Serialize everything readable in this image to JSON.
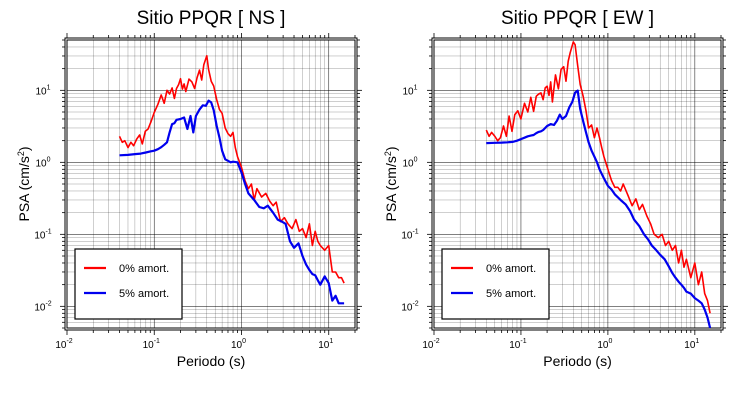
{
  "chart_data": [
    {
      "type": "line",
      "title": "Sitio PPQR [ NS ]",
      "xlabel": "Periodo (s)",
      "ylabel": "PSA (cm/s",
      "ylabel_sup": "2",
      "ylabel_close": ")",
      "xscale": "log",
      "yscale": "log",
      "xlim": [
        0.01,
        20
      ],
      "ylim": [
        0.005,
        50
      ],
      "xticks": [
        {
          "value": 0.01,
          "base": "10",
          "exp": "-2"
        },
        {
          "value": 0.1,
          "base": "10",
          "exp": "-1"
        },
        {
          "value": 1,
          "base": "10",
          "exp": "0"
        },
        {
          "value": 10,
          "base": "10",
          "exp": "1"
        }
      ],
      "yticks": [
        {
          "value": 0.01,
          "base": "10",
          "exp": "-2"
        },
        {
          "value": 0.1,
          "base": "10",
          "exp": "-1"
        },
        {
          "value": 1,
          "base": "10",
          "exp": "0"
        },
        {
          "value": 10,
          "base": "10",
          "exp": "1"
        }
      ],
      "grid": true,
      "legend_position": "bottom-left",
      "series": [
        {
          "name": "0% amort.",
          "color": "#ff0000",
          "x": [
            0.04,
            0.043,
            0.046,
            0.05,
            0.054,
            0.058,
            0.063,
            0.068,
            0.073,
            0.079,
            0.085,
            0.092,
            0.1,
            0.11,
            0.12,
            0.13,
            0.14,
            0.15,
            0.16,
            0.17,
            0.18,
            0.19,
            0.2,
            0.21,
            0.22,
            0.23,
            0.25,
            0.27,
            0.29,
            0.31,
            0.33,
            0.35,
            0.37,
            0.4,
            0.42,
            0.45,
            0.48,
            0.52,
            0.56,
            0.6,
            0.65,
            0.7,
            0.75,
            0.8,
            0.85,
            0.9,
            1.0,
            1.1,
            1.2,
            1.3,
            1.4,
            1.5,
            1.7,
            1.9,
            2.1,
            2.3,
            2.5,
            2.8,
            3.1,
            3.4,
            3.8,
            4.2,
            4.6,
            5.0,
            5.5,
            6.0,
            6.5,
            7.0,
            7.5,
            8.0,
            9.0,
            10.0,
            11.0,
            12.0,
            13.0,
            14.0,
            15.0
          ],
          "y": [
            2.3,
            1.9,
            2.0,
            1.6,
            1.9,
            1.7,
            2.1,
            2.4,
            1.8,
            2.7,
            2.9,
            3.7,
            4.9,
            6.4,
            8.6,
            6.6,
            10.0,
            8.9,
            10.8,
            7.7,
            10.6,
            12.0,
            14.5,
            10.4,
            12.3,
            9.6,
            14.3,
            13.1,
            10.6,
            15.0,
            19.1,
            13.9,
            22.6,
            30.2,
            19.4,
            13.4,
            11.5,
            7.4,
            5.4,
            4.8,
            3.0,
            2.5,
            2.3,
            2.6,
            1.6,
            1.2,
            0.85,
            0.55,
            0.43,
            0.5,
            0.3,
            0.43,
            0.33,
            0.37,
            0.29,
            0.25,
            0.28,
            0.15,
            0.17,
            0.14,
            0.12,
            0.16,
            0.11,
            0.12,
            0.09,
            0.14,
            0.07,
            0.11,
            0.08,
            0.07,
            0.06,
            0.07,
            0.03,
            0.03,
            0.025,
            0.025,
            0.021
          ]
        },
        {
          "name": "5% amort.",
          "color": "#0000ee",
          "x": [
            0.04,
            0.05,
            0.06,
            0.07,
            0.08,
            0.09,
            0.1,
            0.11,
            0.12,
            0.13,
            0.14,
            0.15,
            0.16,
            0.17,
            0.18,
            0.2,
            0.22,
            0.24,
            0.26,
            0.28,
            0.3,
            0.33,
            0.36,
            0.39,
            0.42,
            0.45,
            0.48,
            0.52,
            0.56,
            0.6,
            0.65,
            0.7,
            0.75,
            0.8,
            0.9,
            1.0,
            1.1,
            1.2,
            1.4,
            1.6,
            1.8,
            2.0,
            2.3,
            2.6,
            2.9,
            3.2,
            3.6,
            4.0,
            4.5,
            5.0,
            5.5,
            6.0,
            6.5,
            7.0,
            7.5,
            8.0,
            9.0,
            10.0,
            11.0,
            12.0,
            13.0,
            14.0,
            15.0
          ],
          "y": [
            1.25,
            1.27,
            1.3,
            1.32,
            1.37,
            1.42,
            1.45,
            1.52,
            1.62,
            1.75,
            1.9,
            2.6,
            3.4,
            3.5,
            3.9,
            4.0,
            4.2,
            2.9,
            4.4,
            2.6,
            4.4,
            5.4,
            6.2,
            6.1,
            7.2,
            6.8,
            5.3,
            3.2,
            2.2,
            1.45,
            1.1,
            1.05,
            1.0,
            1.02,
            1.0,
            0.72,
            0.5,
            0.37,
            0.3,
            0.24,
            0.23,
            0.25,
            0.2,
            0.16,
            0.15,
            0.14,
            0.08,
            0.065,
            0.075,
            0.05,
            0.038,
            0.032,
            0.028,
            0.027,
            0.023,
            0.02,
            0.026,
            0.021,
            0.012,
            0.014,
            0.011,
            0.011,
            0.011
          ]
        }
      ]
    },
    {
      "type": "line",
      "title": "Sitio PPQR [ EW ]",
      "xlabel": "Periodo (s)",
      "ylabel": "PSA (cm/s",
      "ylabel_sup": "2",
      "ylabel_close": ")",
      "xscale": "log",
      "yscale": "log",
      "xlim": [
        0.01,
        20
      ],
      "ylim": [
        0.005,
        50
      ],
      "xticks": [
        {
          "value": 0.01,
          "base": "10",
          "exp": "-2"
        },
        {
          "value": 0.1,
          "base": "10",
          "exp": "-1"
        },
        {
          "value": 1,
          "base": "10",
          "exp": "0"
        },
        {
          "value": 10,
          "base": "10",
          "exp": "1"
        }
      ],
      "yticks": [
        {
          "value": 0.01,
          "base": "10",
          "exp": "-2"
        },
        {
          "value": 0.1,
          "base": "10",
          "exp": "-1"
        },
        {
          "value": 1,
          "base": "10",
          "exp": "0"
        },
        {
          "value": 10,
          "base": "10",
          "exp": "1"
        }
      ],
      "grid": true,
      "legend_position": "bottom-left",
      "series": [
        {
          "name": "0% amort.",
          "color": "#ff0000",
          "x": [
            0.04,
            0.043,
            0.046,
            0.05,
            0.054,
            0.058,
            0.063,
            0.068,
            0.073,
            0.079,
            0.085,
            0.092,
            0.1,
            0.11,
            0.12,
            0.13,
            0.14,
            0.15,
            0.16,
            0.17,
            0.18,
            0.19,
            0.2,
            0.21,
            0.22,
            0.23,
            0.25,
            0.27,
            0.29,
            0.31,
            0.33,
            0.35,
            0.37,
            0.4,
            0.42,
            0.45,
            0.48,
            0.52,
            0.56,
            0.6,
            0.65,
            0.7,
            0.75,
            0.8,
            0.85,
            0.9,
            1.0,
            1.1,
            1.2,
            1.3,
            1.4,
            1.5,
            1.7,
            1.9,
            2.1,
            2.3,
            2.5,
            2.8,
            3.1,
            3.4,
            3.8,
            4.2,
            4.6,
            5.0,
            5.5,
            6.0,
            6.5,
            7.0,
            7.5,
            8.0,
            9.0,
            10.0,
            11.0,
            12.0,
            13.0,
            14.0,
            15.0
          ],
          "y": [
            2.8,
            2.3,
            2.6,
            2.3,
            2.0,
            2.2,
            3.2,
            2.3,
            4.4,
            2.7,
            4.6,
            5.2,
            4.0,
            6.6,
            5.0,
            8.0,
            5.1,
            8.3,
            8.9,
            9.2,
            7.4,
            10.8,
            11.4,
            8.5,
            13.1,
            6.9,
            16.4,
            10.5,
            19.6,
            21.3,
            13.4,
            25.4,
            33.7,
            47.0,
            43.0,
            22.0,
            12.0,
            8.2,
            5.2,
            3.0,
            3.3,
            2.2,
            3.0,
            2.2,
            1.6,
            1.2,
            0.8,
            0.56,
            0.45,
            0.45,
            0.4,
            0.5,
            0.35,
            0.25,
            0.31,
            0.22,
            0.26,
            0.18,
            0.14,
            0.1,
            0.09,
            0.1,
            0.07,
            0.08,
            0.06,
            0.07,
            0.04,
            0.06,
            0.035,
            0.045,
            0.025,
            0.04,
            0.02,
            0.03,
            0.015,
            0.012,
            0.008
          ]
        },
        {
          "name": "5% amort.",
          "color": "#0000ee",
          "x": [
            0.04,
            0.05,
            0.06,
            0.07,
            0.08,
            0.09,
            0.1,
            0.11,
            0.12,
            0.13,
            0.14,
            0.15,
            0.16,
            0.17,
            0.18,
            0.2,
            0.22,
            0.24,
            0.26,
            0.28,
            0.3,
            0.33,
            0.36,
            0.39,
            0.42,
            0.45,
            0.48,
            0.52,
            0.56,
            0.6,
            0.65,
            0.7,
            0.75,
            0.8,
            0.9,
            1.0,
            1.1,
            1.2,
            1.4,
            1.6,
            1.8,
            2.0,
            2.3,
            2.6,
            2.9,
            3.2,
            3.6,
            4.0,
            4.5,
            5.0,
            5.5,
            6.0,
            6.5,
            7.0,
            7.5,
            8.0,
            9.0,
            10.0,
            11.0,
            12.0,
            13.0,
            14.0,
            15.0
          ],
          "y": [
            1.85,
            1.87,
            1.88,
            1.9,
            1.92,
            2.0,
            2.1,
            2.2,
            2.3,
            2.35,
            2.4,
            2.55,
            2.65,
            2.7,
            2.8,
            3.2,
            3.4,
            3.3,
            3.8,
            4.6,
            4.0,
            4.4,
            5.8,
            6.9,
            9.3,
            9.9,
            5.5,
            3.7,
            2.6,
            1.9,
            1.45,
            1.2,
            1.0,
            0.8,
            0.6,
            0.47,
            0.42,
            0.36,
            0.3,
            0.26,
            0.21,
            0.16,
            0.13,
            0.1,
            0.085,
            0.07,
            0.06,
            0.052,
            0.045,
            0.036,
            0.029,
            0.025,
            0.022,
            0.02,
            0.018,
            0.016,
            0.015,
            0.013,
            0.012,
            0.011,
            0.009,
            0.007,
            0.005
          ]
        }
      ]
    }
  ]
}
